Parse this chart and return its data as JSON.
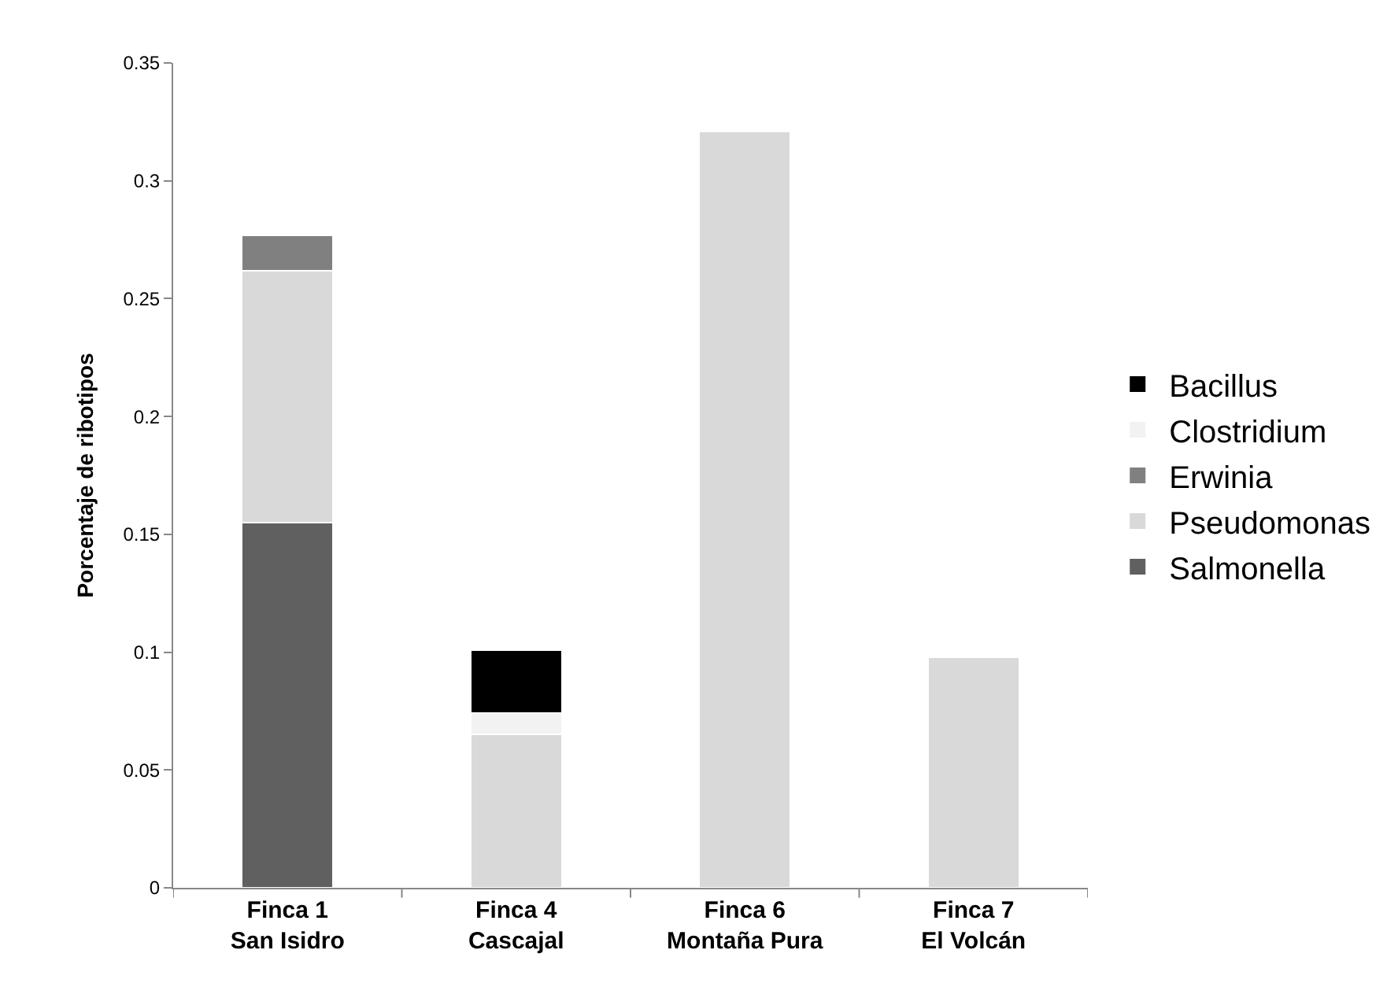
{
  "chart_data": {
    "type": "bar",
    "stacked": true,
    "ylabel": "Porcentaje de ribotipos",
    "categories": [
      "Finca 1\nSan Isidro",
      "Finca 4\nCascajal",
      "Finca 6\nMontaña Pura",
      "Finca 7\nEl Volcán"
    ],
    "series": [
      {
        "name": "Salmonella",
        "color": "#606060",
        "values": [
          0.155,
          null,
          null,
          null
        ]
      },
      {
        "name": "Pseudomonas",
        "color": "#d9d9d9",
        "values": [
          0.107,
          0.065,
          0.321,
          0.098
        ]
      },
      {
        "name": "Erwinia",
        "color": "#808080",
        "values": [
          0.015,
          null,
          null,
          null
        ]
      },
      {
        "name": "Clostridium",
        "color": "#f2f2f2",
        "values": [
          null,
          0.009,
          null,
          null
        ]
      },
      {
        "name": "Bacillus",
        "color": "#000000",
        "values": [
          null,
          0.027,
          null,
          null
        ]
      }
    ],
    "ylim": [
      0,
      0.35
    ],
    "yticks": [
      0,
      0.05,
      0.1,
      0.15,
      0.2,
      0.25,
      0.3,
      0.35
    ],
    "grid": false,
    "legend": "right"
  }
}
